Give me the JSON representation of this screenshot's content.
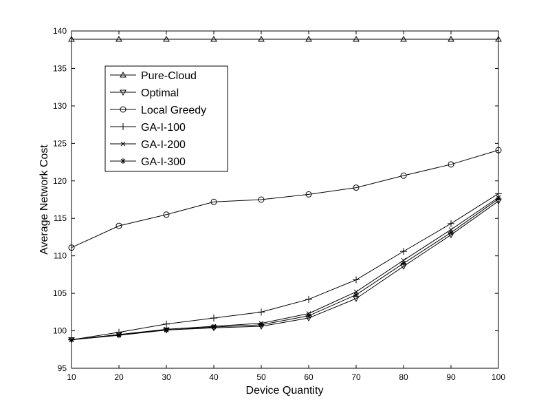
{
  "chart_data": {
    "type": "line",
    "title": "",
    "xlabel": "Device Quantity",
    "ylabel": "Average Network Cost",
    "xlim": [
      10,
      100
    ],
    "ylim": [
      95,
      140
    ],
    "x": [
      10,
      20,
      30,
      40,
      50,
      60,
      70,
      80,
      90,
      100
    ],
    "xticks": [
      10,
      20,
      30,
      40,
      50,
      60,
      70,
      80,
      90,
      100
    ],
    "yticks": [
      95,
      100,
      105,
      110,
      115,
      120,
      125,
      130,
      135,
      140
    ],
    "grid": false,
    "legend_position": "top-left",
    "series": [
      {
        "name": "Pure-Cloud",
        "marker": "triangle-up",
        "color": "#000000",
        "values": [
          138.9,
          138.9,
          138.9,
          138.9,
          138.9,
          138.9,
          138.9,
          138.9,
          138.9,
          138.9
        ]
      },
      {
        "name": "Optimal",
        "marker": "triangle-down",
        "color": "#000000",
        "values": [
          98.8,
          99.5,
          100.1,
          100.4,
          100.6,
          101.7,
          104.3,
          108.6,
          112.8,
          117.3
        ]
      },
      {
        "name": "Local Greedy",
        "marker": "circle",
        "color": "#000000",
        "values": [
          111.1,
          114.0,
          115.5,
          117.2,
          117.5,
          118.2,
          119.1,
          120.7,
          122.2,
          124.1
        ]
      },
      {
        "name": "GA-I-100",
        "marker": "plus",
        "color": "#000000",
        "values": [
          98.8,
          99.8,
          100.9,
          101.7,
          102.5,
          104.2,
          106.8,
          110.6,
          114.3,
          118.3
        ]
      },
      {
        "name": "GA-I-200",
        "marker": "x",
        "color": "#000000",
        "values": [
          98.8,
          99.5,
          100.2,
          100.6,
          101.0,
          102.3,
          105.2,
          109.4,
          113.5,
          117.8
        ]
      },
      {
        "name": "GA-I-300",
        "marker": "asterisk",
        "color": "#000000",
        "values": [
          98.8,
          99.4,
          100.1,
          100.5,
          100.8,
          102.0,
          104.8,
          109.0,
          113.1,
          117.6
        ]
      }
    ]
  }
}
